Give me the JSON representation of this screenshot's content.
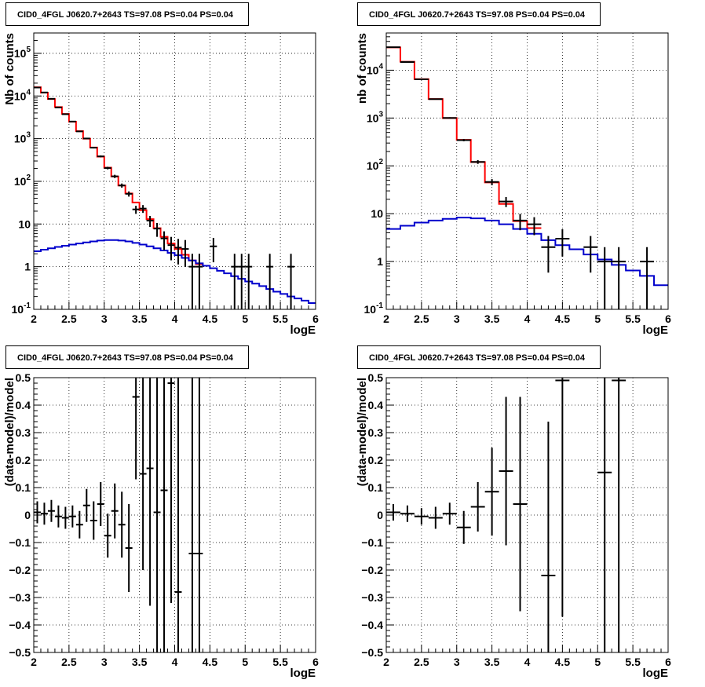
{
  "chart_data": [
    {
      "type": "step",
      "title": "CID0_4FGL J0620.7+2643 TS=97.08 PS=0.04 PS=0.04",
      "xlabel": "logE",
      "ylabel": "Nb of counts",
      "xlim": [
        2,
        6
      ],
      "ylim": [
        0.1,
        300000
      ],
      "yscale": "log",
      "grid": true,
      "xticks": [
        "2",
        "2.5",
        "3",
        "3.5",
        "4",
        "4.5",
        "5",
        "5.5",
        "6"
      ],
      "yticks": [
        "10^-1",
        "1",
        "10",
        "10^2",
        "10^3",
        "10^4",
        "10^5"
      ],
      "series": [
        {
          "kind": "histogram",
          "color": "#ff0000",
          "edges": [
            2.0,
            2.1,
            2.2,
            2.3,
            2.4,
            2.5,
            2.6,
            2.7,
            2.8,
            2.9,
            3.0,
            3.1,
            3.2,
            3.3,
            3.4,
            3.5,
            3.6,
            3.7,
            3.8,
            3.9,
            4.0,
            4.1,
            4.2,
            4.3,
            4.4
          ],
          "values": [
            16000,
            12000,
            8500,
            5500,
            3800,
            2500,
            1500,
            1000,
            620,
            380,
            210,
            130,
            80,
            52,
            32,
            21,
            13,
            8,
            5,
            3.5,
            2.6,
            1.9,
            1.4,
            1.15
          ]
        },
        {
          "kind": "histogram",
          "color": "#0000cc",
          "edges": [
            2.0,
            2.1,
            2.2,
            2.3,
            2.4,
            2.5,
            2.6,
            2.7,
            2.8,
            2.9,
            3.0,
            3.1,
            3.2,
            3.3,
            3.4,
            3.5,
            3.6,
            3.7,
            3.8,
            3.9,
            4.0,
            4.1,
            4.2,
            4.3,
            4.4,
            4.5,
            4.6,
            4.7,
            4.8,
            4.9,
            5.0,
            5.1,
            5.2,
            5.3,
            5.4,
            5.5,
            5.6,
            5.7,
            5.8,
            5.9,
            6.0
          ],
          "values": [
            2.3,
            2.5,
            2.7,
            2.9,
            3.1,
            3.3,
            3.5,
            3.7,
            3.9,
            4.1,
            4.2,
            4.2,
            4.1,
            3.9,
            3.6,
            3.3,
            3.0,
            2.7,
            2.4,
            2.1,
            1.85,
            1.6,
            1.4,
            1.2,
            1.05,
            0.92,
            0.8,
            0.7,
            0.6,
            0.52,
            0.45,
            0.4,
            0.35,
            0.3,
            0.26,
            0.23,
            0.2,
            0.18,
            0.16,
            0.14
          ]
        },
        {
          "kind": "points",
          "color": "#000000",
          "x": [
            2.05,
            2.15,
            2.25,
            2.35,
            2.45,
            2.55,
            2.65,
            2.75,
            2.85,
            2.95,
            3.05,
            3.15,
            3.25,
            3.35,
            3.45,
            3.55,
            3.65,
            3.75,
            3.85,
            3.95,
            4.05,
            4.15,
            4.25,
            4.35,
            4.55,
            4.85,
            4.95,
            5.05,
            5.35,
            5.65
          ],
          "y": [
            15800,
            12100,
            8600,
            5400,
            3750,
            2520,
            1480,
            1010,
            615,
            385,
            205,
            131,
            80,
            51,
            22,
            23,
            12,
            7.8,
            4.6,
            3.2,
            2.8,
            2.6,
            1,
            1,
            3,
            1,
            1,
            1,
            1,
            1
          ],
          "xerr": 0.05
        }
      ]
    },
    {
      "type": "step",
      "title": "CID0_4FGL J0620.7+2643 TS=97.08 PS=0.04 PS=0.04",
      "xlabel": "logE",
      "ylabel": "nb of counts",
      "xlim": [
        2,
        6
      ],
      "ylim": [
        0.1,
        60000
      ],
      "yscale": "log",
      "grid": true,
      "xticks": [
        "2",
        "2.5",
        "3",
        "3.5",
        "4",
        "4.5",
        "5",
        "5.5",
        "6"
      ],
      "yticks": [
        "10^-1",
        "1",
        "10",
        "10^2",
        "10^3",
        "10^4"
      ],
      "series": [
        {
          "kind": "histogram",
          "color": "#ff0000",
          "edges": [
            2.0,
            2.2,
            2.4,
            2.6,
            2.8,
            3.0,
            3.2,
            3.4,
            3.6,
            3.8,
            4.0,
            4.2
          ],
          "values": [
            30000,
            15000,
            6500,
            2500,
            1000,
            350,
            120,
            45,
            16,
            7,
            5
          ]
        },
        {
          "kind": "histogram",
          "color": "#0000cc",
          "edges": [
            2.0,
            2.2,
            2.4,
            2.6,
            2.8,
            3.0,
            3.2,
            3.4,
            3.6,
            3.8,
            4.0,
            4.2,
            4.4,
            4.6,
            4.8,
            5.0,
            5.2,
            5.4,
            5.6,
            5.8,
            6.0
          ],
          "values": [
            4.8,
            5.6,
            6.5,
            7.2,
            7.8,
            8.3,
            8.0,
            7.2,
            6.0,
            4.8,
            3.8,
            2.8,
            2.2,
            1.8,
            1.4,
            1.1,
            0.85,
            0.65,
            0.5,
            0.32
          ]
        },
        {
          "kind": "points",
          "color": "#000000",
          "x": [
            2.1,
            2.3,
            2.5,
            2.7,
            2.9,
            3.1,
            3.3,
            3.5,
            3.7,
            3.9,
            4.1,
            4.3,
            4.5,
            4.9,
            5.1,
            5.3,
            5.7
          ],
          "y": [
            30200,
            14800,
            6450,
            2480,
            1005,
            345,
            121,
            46,
            18,
            7.2,
            6,
            2,
            3,
            2,
            1,
            1,
            1
          ],
          "xerr": 0.1
        }
      ]
    },
    {
      "type": "errorbar",
      "title": "CID0_4FGL J0620.7+2643 TS=97.08 PS=0.04 PS=0.04",
      "xlabel": "logE",
      "ylabel": "(data-model)/model",
      "xlim": [
        2,
        6
      ],
      "ylim": [
        -0.5,
        0.5
      ],
      "grid": true,
      "xticks": [
        "2",
        "2.5",
        "3",
        "3.5",
        "4",
        "4.5",
        "5",
        "5.5",
        "6"
      ],
      "yticks": [
        "−0.5",
        "−0.4",
        "−0.3",
        "−0.2",
        "−0.1",
        "0",
        "0.1",
        "0.2",
        "0.3",
        "0.4",
        "0.5"
      ],
      "series": [
        {
          "kind": "points",
          "color": "#000000",
          "xerr": 0.05,
          "x": [
            2.05,
            2.15,
            2.25,
            2.35,
            2.45,
            2.55,
            2.65,
            2.75,
            2.85,
            2.95,
            3.05,
            3.15,
            3.25,
            3.35,
            3.45,
            3.55,
            3.65,
            3.75,
            3.85,
            3.95,
            4.05,
            4.25,
            4.35
          ],
          "y": [
            0.01,
            0.005,
            0.015,
            -0.005,
            -0.01,
            -0.005,
            -0.035,
            0.035,
            -0.02,
            0.04,
            -0.075,
            0.015,
            -0.035,
            -0.12,
            0.43,
            0.15,
            0.17,
            0.01,
            0.09,
            0.48,
            -0.28,
            -0.14,
            -0.14
          ],
          "err": [
            0.04,
            0.04,
            0.04,
            0.04,
            0.04,
            0.04,
            0.05,
            0.06,
            0.07,
            0.08,
            0.08,
            0.1,
            0.12,
            0.16,
            0.3,
            0.35,
            0.5,
            0.55,
            0.65,
            0.8,
            0.85,
            0.9,
            1.0
          ]
        }
      ]
    },
    {
      "type": "errorbar",
      "title": "CID0_4FGL J0620.7+2643 TS=97.08 PS=0.04 PS=0.04",
      "xlabel": "logE",
      "ylabel": "(data-model)/model",
      "xlim": [
        2,
        6
      ],
      "ylim": [
        -0.5,
        0.5
      ],
      "grid": true,
      "xticks": [
        "2",
        "2.5",
        "3",
        "3.5",
        "4",
        "4.5",
        "5",
        "5.5",
        "6"
      ],
      "yticks": [
        "−0.5",
        "−0.4",
        "−0.3",
        "−0.2",
        "−0.1",
        "0",
        "0.1",
        "0.2",
        "0.3",
        "0.4",
        "0.5"
      ],
      "series": [
        {
          "kind": "points",
          "color": "#000000",
          "xerr": 0.1,
          "x": [
            2.1,
            2.3,
            2.5,
            2.7,
            2.9,
            3.1,
            3.3,
            3.5,
            3.7,
            3.9,
            4.3,
            4.5,
            5.1,
            5.3
          ],
          "y": [
            0.01,
            0.005,
            -0.005,
            -0.01,
            0.005,
            -0.045,
            0.03,
            0.085,
            0.16,
            0.04,
            -0.22,
            0.49,
            0.155,
            0.49
          ],
          "err": [
            0.03,
            0.03,
            0.03,
            0.04,
            0.04,
            0.06,
            0.09,
            0.16,
            0.27,
            0.39,
            0.56,
            0.86,
            0.95,
            1.0
          ]
        }
      ]
    }
  ]
}
